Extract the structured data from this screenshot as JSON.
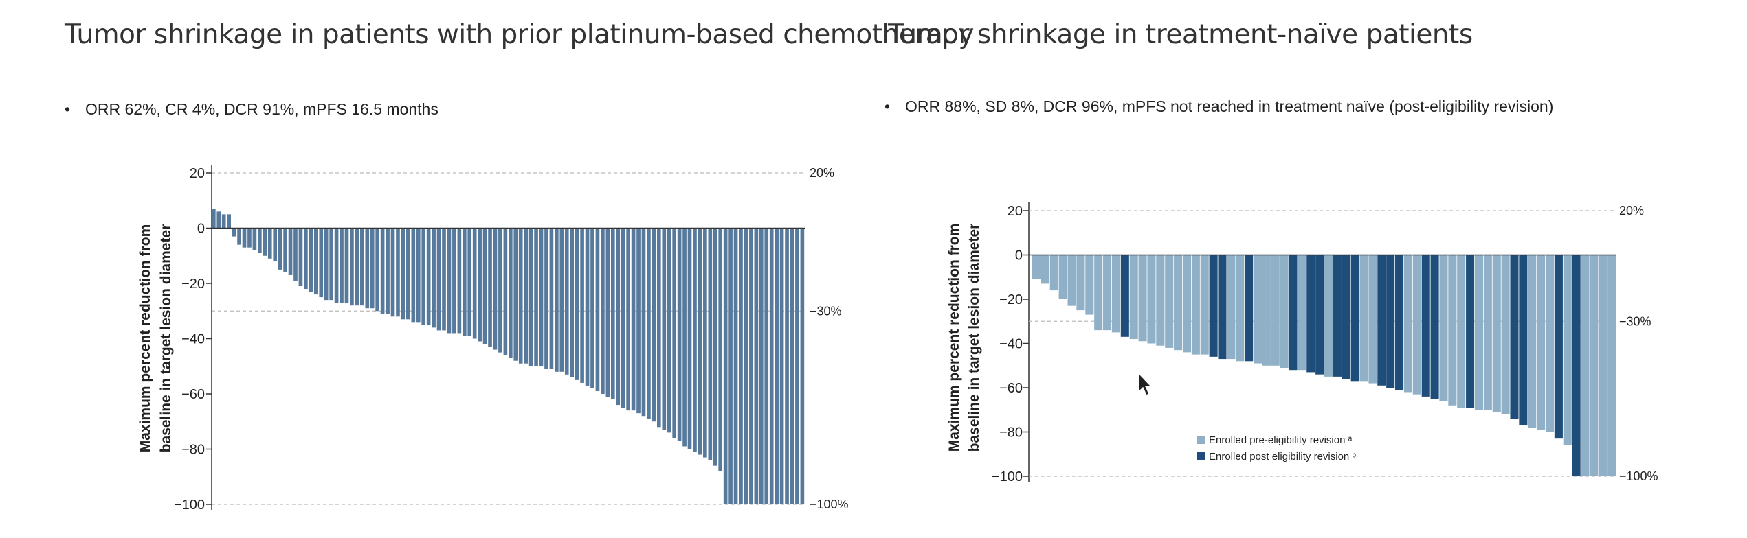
{
  "titles": {
    "left": "Tumor shrinkage in patients with prior platinum-based chemotherapy",
    "right": "Tumor shrinkage in treatment-naïve patients"
  },
  "bullets": {
    "left": "ORR 62%, CR 4%, DCR 91%, mPFS 16.5 months",
    "right": "ORR 88%, SD 8%, DCR 96%, mPFS not reached in treatment naïve (post-eligibility revision)"
  },
  "colors": {
    "bar_left": "#56799c",
    "bar_pre": "#8fb0c6",
    "bar_post": "#1e4d7a",
    "gridline": "#bbbbbb",
    "axis": "#333333"
  },
  "chart_data": [
    {
      "type": "bar",
      "title": "Tumor shrinkage in patients with prior platinum-based chemotherapy",
      "ylabel": "Maximum percent reduction from baseline in target lesion diameter",
      "ylim": [
        -100,
        20
      ],
      "yticks": [
        20,
        0,
        -20,
        -40,
        -60,
        -80,
        -100
      ],
      "yticklabels": [
        "20",
        "0",
        "−20",
        "−40",
        "−60",
        "−80",
        "−100"
      ],
      "reference_lines": [
        {
          "value": 20,
          "label": "20%"
        },
        {
          "value": -30,
          "label": "−30%"
        },
        {
          "value": -100,
          "label": "−100%"
        }
      ],
      "grid": false,
      "values": [
        7,
        6,
        5,
        5,
        -3,
        -6,
        -7,
        -7,
        -8,
        -9,
        -10,
        -11,
        -12,
        -15,
        -16,
        -17,
        -19,
        -21,
        -22,
        -23,
        -24,
        -25,
        -26,
        -26,
        -27,
        -27,
        -27,
        -28,
        -28,
        -28,
        -29,
        -29,
        -30,
        -31,
        -31,
        -32,
        -32,
        -33,
        -33,
        -34,
        -34,
        -35,
        -35,
        -36,
        -37,
        -37,
        -38,
        -38,
        -38,
        -39,
        -39,
        -40,
        -41,
        -42,
        -43,
        -44,
        -45,
        -46,
        -47,
        -48,
        -49,
        -49,
        -50,
        -50,
        -50,
        -51,
        -51,
        -52,
        -52,
        -53,
        -54,
        -55,
        -56,
        -57,
        -58,
        -59,
        -60,
        -61,
        -62,
        -64,
        -65,
        -66,
        -66,
        -67,
        -68,
        -69,
        -70,
        -72,
        -73,
        -74,
        -76,
        -77,
        -79,
        -80,
        -81,
        -82,
        -83,
        -84,
        -86,
        -88,
        -100,
        -100,
        -100,
        -100,
        -100,
        -100,
        -100,
        -100,
        -100,
        -100,
        -100,
        -100,
        -100,
        -100,
        -100,
        -100
      ]
    },
    {
      "type": "bar",
      "title": "Tumor shrinkage in treatment-naïve patients",
      "ylabel": "Maximum percent reduction from baseline in target lesion diameter",
      "ylim": [
        -100,
        20
      ],
      "yticks": [
        20,
        0,
        -20,
        -40,
        -60,
        -80,
        -100
      ],
      "yticklabels": [
        "20",
        "0",
        "−20",
        "−40",
        "−60",
        "−80",
        "−100"
      ],
      "reference_lines": [
        {
          "value": 20,
          "label": "20%"
        },
        {
          "value": -30,
          "label": "−30%"
        },
        {
          "value": -100,
          "label": "−100%"
        }
      ],
      "grid": false,
      "legend": {
        "placement": "bottom-left",
        "entries": [
          "Enrolled pre-eligibility revision ᵃ",
          "Enrolled post eligibility revision ᵇ"
        ]
      },
      "series": [
        {
          "name": "Enrolled pre-eligibility revision ᵃ"
        },
        {
          "name": "Enrolled post eligibility revision ᵇ"
        }
      ],
      "values": [
        -11,
        -13,
        -16,
        -20,
        -23,
        -25,
        -27,
        -34,
        -34,
        -35,
        -37,
        -38,
        -39,
        -40,
        -41,
        -42,
        -43,
        -44,
        -45,
        -45,
        -46,
        -47,
        -47,
        -48,
        -48,
        -49,
        -50,
        -50,
        -51,
        -52,
        -52,
        -53,
        -54,
        -55,
        -55,
        -56,
        -57,
        -57,
        -58,
        -59,
        -60,
        -61,
        -62,
        -63,
        -64,
        -65,
        -66,
        -68,
        -69,
        -69,
        -70,
        -70,
        -71,
        -72,
        -74,
        -77,
        -78,
        -79,
        -80,
        -83,
        -86,
        -100,
        -100,
        -100,
        -100,
        -100
      ],
      "groups": [
        0,
        0,
        0,
        0,
        0,
        0,
        0,
        0,
        0,
        0,
        1,
        0,
        0,
        0,
        0,
        0,
        0,
        0,
        0,
        0,
        1,
        1,
        0,
        0,
        1,
        0,
        0,
        0,
        0,
        1,
        0,
        1,
        1,
        0,
        1,
        1,
        1,
        0,
        0,
        1,
        1,
        1,
        0,
        0,
        1,
        1,
        0,
        0,
        0,
        1,
        0,
        0,
        0,
        0,
        1,
        1,
        0,
        0,
        0,
        1,
        0,
        1,
        0,
        0,
        0,
        0
      ]
    }
  ]
}
